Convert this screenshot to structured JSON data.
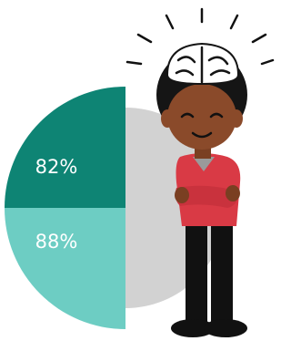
{
  "segments": [
    {
      "label": "82%"
    },
    {
      "label": "88%"
    }
  ]
}
